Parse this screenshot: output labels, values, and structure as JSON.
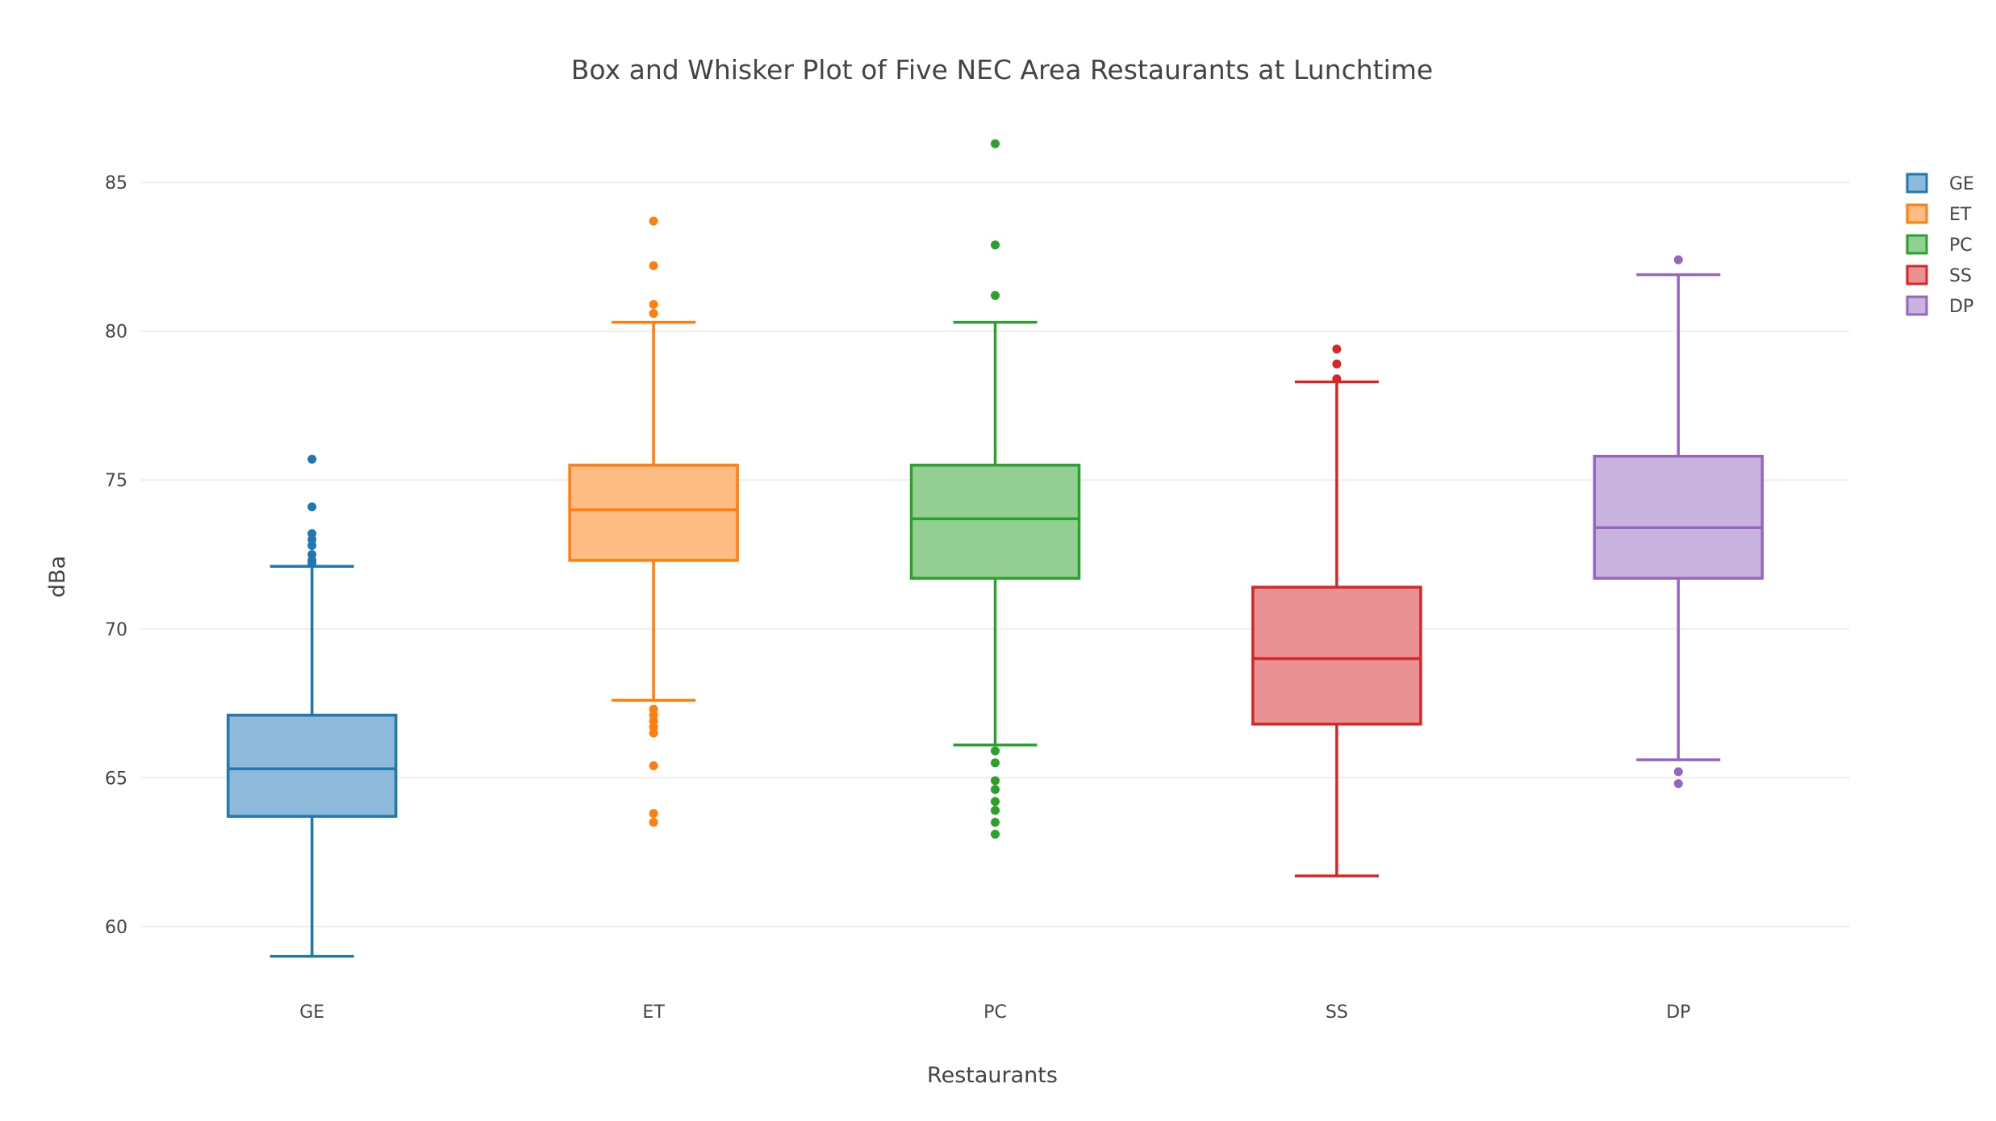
{
  "chart_data": {
    "type": "box",
    "title": "Box and Whisker Plot of Five NEC Area Restaurants at Lunchtime",
    "xlabel": "Restaurants",
    "ylabel": "dBa",
    "ylim": [
      57.8,
      87.2
    ],
    "yticks": [
      60,
      65,
      70,
      75,
      80,
      85
    ],
    "grid": true,
    "legend_position": "top-right",
    "categories": [
      "GE",
      "ET",
      "PC",
      "SS",
      "DP"
    ],
    "series": [
      {
        "name": "GE",
        "color": "#1f77b4",
        "fill": "#8fb9da",
        "q1": 63.7,
        "median": 65.3,
        "q3": 67.1,
        "whisker_low": 59.0,
        "whisker_high": 72.1,
        "outliers": [
          75.7,
          74.1,
          73.2,
          73.0,
          72.8,
          72.5,
          72.3,
          72.2
        ]
      },
      {
        "name": "ET",
        "color": "#ff7f0e",
        "fill": "#ffbb84",
        "q1": 72.3,
        "median": 74.0,
        "q3": 75.5,
        "whisker_low": 67.6,
        "whisker_high": 80.3,
        "outliers": [
          83.7,
          82.2,
          80.9,
          80.6,
          67.3,
          67.1,
          66.9,
          66.7,
          66.5,
          65.4,
          63.8,
          63.5
        ]
      },
      {
        "name": "PC",
        "color": "#2ca02c",
        "fill": "#93cf93",
        "q1": 71.7,
        "median": 73.7,
        "q3": 75.5,
        "whisker_low": 66.1,
        "whisker_high": 80.3,
        "outliers": [
          86.3,
          82.9,
          81.2,
          65.9,
          65.5,
          64.9,
          64.6,
          64.2,
          63.9,
          63.5,
          63.1
        ]
      },
      {
        "name": "SS",
        "color": "#d62728",
        "fill": "#ea9293",
        "q1": 66.8,
        "median": 69.0,
        "q3": 71.4,
        "whisker_low": 61.7,
        "whisker_high": 78.3,
        "outliers": [
          79.4,
          78.9,
          78.4
        ]
      },
      {
        "name": "DP",
        "color": "#9467bd",
        "fill": "#c9b3de",
        "q1": 71.7,
        "median": 73.4,
        "q3": 75.8,
        "whisker_low": 65.6,
        "whisker_high": 81.9,
        "outliers": [
          82.4,
          65.2,
          64.8
        ]
      }
    ]
  }
}
